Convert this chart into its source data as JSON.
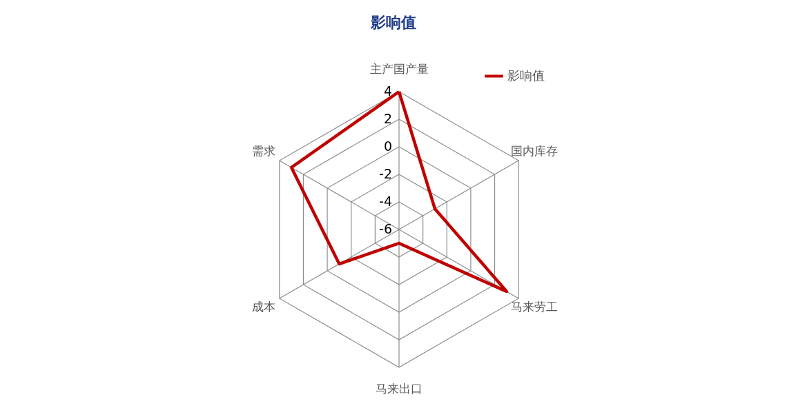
{
  "chart_data": {
    "type": "radar",
    "title": "影响值",
    "categories": [
      "主产国产量",
      "国内库存",
      "马来劳工",
      "马来出口",
      "成本",
      "需求"
    ],
    "series": [
      {
        "name": "影响值",
        "color": "#c00000",
        "values": [
          4,
          -3,
          3,
          -5,
          -1,
          3
        ]
      }
    ],
    "ylim": [
      -6,
      4
    ],
    "yticks": [
      4,
      2,
      0,
      -2,
      -4,
      -6
    ],
    "grid": true,
    "legend": "top right",
    "marker": "none",
    "line_style": "solid"
  }
}
